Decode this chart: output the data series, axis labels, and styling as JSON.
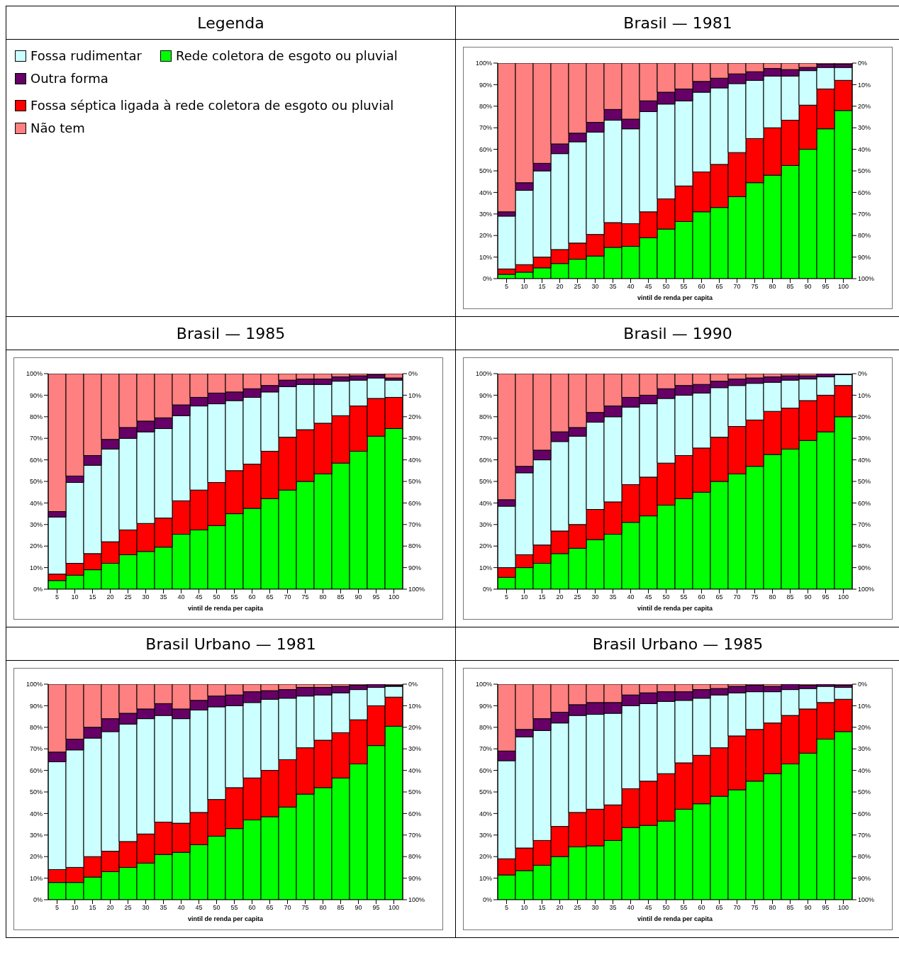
{
  "chart_data": [
    {
      "type": "bar",
      "stacked": true,
      "title": "Brasil — 1981",
      "legend": "left",
      "legend_title": "Legenda",
      "xlabel": "vintil de renda per capita",
      "categories": [
        "5",
        "10",
        "15",
        "20",
        "25",
        "30",
        "35",
        "40",
        "45",
        "50",
        "55",
        "60",
        "65",
        "70",
        "75",
        "80",
        "85",
        "90",
        "95",
        "100"
      ],
      "ylim": [
        0,
        100
      ],
      "yticks": [
        {
          "value": 0,
          "label": "0%"
        },
        {
          "value": 10,
          "label": "10%"
        },
        {
          "value": 20,
          "label": "20%"
        },
        {
          "value": 30,
          "label": "30%"
        },
        {
          "value": 40,
          "label": "40%"
        },
        {
          "value": 50,
          "label": "50%"
        },
        {
          "value": 60,
          "label": "60%"
        },
        {
          "value": 70,
          "label": "70%"
        },
        {
          "value": 80,
          "label": "80%"
        },
        {
          "value": 90,
          "label": "90%"
        },
        {
          "value": 100,
          "label": "100%"
        }
      ],
      "y2lim": [
        100,
        0
      ],
      "y2ticks": [
        {
          "value": 0,
          "label": "0%"
        },
        {
          "value": 10,
          "label": "10%"
        },
        {
          "value": 20,
          "label": "20%"
        },
        {
          "value": 30,
          "label": "30%"
        },
        {
          "value": 40,
          "label": "40%"
        },
        {
          "value": 50,
          "label": "50%"
        },
        {
          "value": 60,
          "label": "60%"
        },
        {
          "value": 70,
          "label": "70%"
        },
        {
          "value": 80,
          "label": "80%"
        },
        {
          "value": 90,
          "label": "90%"
        },
        {
          "value": 100,
          "label": "100%"
        }
      ],
      "series": [
        {
          "name": "Rede coletora de esgoto ou pluvial",
          "color": "#00ff00",
          "values": [
            2,
            3,
            5,
            7,
            9,
            10.5,
            14.5,
            15,
            19,
            23,
            26.5,
            31,
            33,
            38,
            44.5,
            48,
            52.5,
            60,
            69.5,
            78
          ]
        },
        {
          "name": "Fossa séptica ligada à rede coletora de esgoto ou pluvial",
          "color": "#ff0000",
          "values": [
            2.5,
            3.5,
            5,
            6.5,
            7.5,
            10,
            11.5,
            10.5,
            12,
            14,
            16.5,
            18.5,
            20,
            20.5,
            20.5,
            22,
            21,
            20.5,
            18.5,
            14
          ]
        },
        {
          "name": "Fossa rudimentar",
          "color": "#ccffff",
          "values": [
            24.5,
            34.5,
            40,
            44.5,
            47,
            47.5,
            47.5,
            44,
            46.5,
            44,
            39.5,
            37,
            35.5,
            32,
            27,
            24,
            20.5,
            16,
            10,
            6
          ]
        },
        {
          "name": "Outra forma",
          "color": "#660066",
          "values": [
            2,
            3.5,
            3.5,
            4.5,
            4,
            4.5,
            5,
            4.5,
            5,
            5.5,
            5.5,
            5,
            4.5,
            4.5,
            4,
            3.5,
            3,
            1.5,
            1.5,
            1.5
          ]
        },
        {
          "name": "Não tem",
          "color": "#ff8080",
          "values": [
            69,
            55.5,
            46.5,
            37.5,
            32.5,
            27.5,
            21.5,
            26,
            17.5,
            13.5,
            12,
            8.5,
            7,
            5,
            4,
            2.5,
            3,
            2,
            0.5,
            0.5
          ]
        }
      ]
    },
    {
      "type": "bar",
      "stacked": true,
      "title": "Brasil — 1985",
      "xlabel": "vintil de renda per capita",
      "categories": [
        "5",
        "10",
        "15",
        "20",
        "25",
        "30",
        "35",
        "40",
        "45",
        "50",
        "55",
        "60",
        "65",
        "70",
        "75",
        "80",
        "85",
        "90",
        "95",
        "100"
      ],
      "ylim": [
        0,
        100
      ],
      "yticks": [
        {
          "value": 0,
          "label": "0%"
        },
        {
          "value": 10,
          "label": "10%"
        },
        {
          "value": 20,
          "label": "20%"
        },
        {
          "value": 30,
          "label": "30%"
        },
        {
          "value": 40,
          "label": "40%"
        },
        {
          "value": 50,
          "label": "50%"
        },
        {
          "value": 60,
          "label": "60%"
        },
        {
          "value": 70,
          "label": "70%"
        },
        {
          "value": 80,
          "label": "80%"
        },
        {
          "value": 90,
          "label": "90%"
        },
        {
          "value": 100,
          "label": "100%"
        }
      ],
      "y2lim": [
        100,
        0
      ],
      "y2ticks": [
        {
          "value": 0,
          "label": "0%"
        },
        {
          "value": 10,
          "label": "10%"
        },
        {
          "value": 20,
          "label": "20%"
        },
        {
          "value": 30,
          "label": "30%"
        },
        {
          "value": 40,
          "label": "40%"
        },
        {
          "value": 50,
          "label": "50%"
        },
        {
          "value": 60,
          "label": "60%"
        },
        {
          "value": 70,
          "label": "70%"
        },
        {
          "value": 80,
          "label": "80%"
        },
        {
          "value": 90,
          "label": "90%"
        },
        {
          "value": 100,
          "label": "100%"
        }
      ],
      "series": [
        {
          "name": "Rede coletora de esgoto ou pluvial",
          "color": "#00ff00",
          "values": [
            4,
            6.5,
            9,
            12,
            16,
            17.5,
            19.5,
            25.5,
            27.5,
            29.5,
            35,
            37.5,
            42,
            46,
            50,
            53.5,
            58.5,
            64,
            71,
            74.5
          ]
        },
        {
          "name": "Fossa séptica ligada à rede coletora de esgoto ou pluvial",
          "color": "#ff0000",
          "values": [
            3,
            5.5,
            7.5,
            10,
            11.5,
            13,
            13.5,
            15.5,
            18.5,
            20,
            20,
            20.5,
            22,
            24.5,
            24,
            23.5,
            22,
            21,
            17.5,
            14.5
          ]
        },
        {
          "name": "Fossa rudimentar",
          "color": "#ccffff",
          "values": [
            26.5,
            37.5,
            41,
            43,
            42.5,
            42.5,
            41.5,
            39.5,
            39,
            36.5,
            32.5,
            31,
            27.5,
            23.5,
            21,
            18,
            16,
            12,
            9.5,
            8
          ]
        },
        {
          "name": "Outra forma",
          "color": "#660066",
          "values": [
            2.5,
            3,
            4.5,
            4.5,
            5,
            5,
            5,
            5,
            4,
            5,
            4,
            4,
            3,
            3,
            2.5,
            2.5,
            2,
            2,
            1.5,
            1
          ]
        },
        {
          "name": "Não tem",
          "color": "#ff8080",
          "values": [
            64,
            47.5,
            38,
            30.5,
            25,
            22,
            20.5,
            14.5,
            11,
            9,
            8.5,
            7,
            5.5,
            3,
            2.5,
            2.5,
            1.5,
            1,
            0.5,
            2
          ]
        }
      ]
    },
    {
      "type": "bar",
      "stacked": true,
      "title": "Brasil — 1990",
      "xlabel": "vintil de renda per capita",
      "categories": [
        "5",
        "10",
        "15",
        "20",
        "25",
        "30",
        "35",
        "40",
        "45",
        "50",
        "55",
        "60",
        "65",
        "70",
        "75",
        "80",
        "85",
        "90",
        "95",
        "100"
      ],
      "ylim": [
        0,
        100
      ],
      "yticks": [
        {
          "value": 0,
          "label": "0%"
        },
        {
          "value": 10,
          "label": "10%"
        },
        {
          "value": 20,
          "label": "20%"
        },
        {
          "value": 30,
          "label": "30%"
        },
        {
          "value": 40,
          "label": "40%"
        },
        {
          "value": 50,
          "label": "50%"
        },
        {
          "value": 60,
          "label": "60%"
        },
        {
          "value": 70,
          "label": "70%"
        },
        {
          "value": 80,
          "label": "80%"
        },
        {
          "value": 90,
          "label": "90%"
        },
        {
          "value": 100,
          "label": "100%"
        }
      ],
      "y2lim": [
        100,
        0
      ],
      "y2ticks": [
        {
          "value": 0,
          "label": "0%"
        },
        {
          "value": 10,
          "label": "10%"
        },
        {
          "value": 20,
          "label": "20%"
        },
        {
          "value": 30,
          "label": "30%"
        },
        {
          "value": 40,
          "label": "40%"
        },
        {
          "value": 50,
          "label": "50%"
        },
        {
          "value": 60,
          "label": "60%"
        },
        {
          "value": 70,
          "label": "70%"
        },
        {
          "value": 80,
          "label": "80%"
        },
        {
          "value": 90,
          "label": "90%"
        },
        {
          "value": 100,
          "label": "100%"
        }
      ],
      "series": [
        {
          "name": "Rede coletora de esgoto ou pluvial",
          "color": "#00ff00",
          "values": [
            5.5,
            10,
            12,
            16.5,
            19,
            23,
            25.5,
            31,
            34,
            39,
            42,
            45,
            50,
            53.5,
            57,
            62.5,
            65,
            69,
            73,
            80
          ]
        },
        {
          "name": "Fossa séptica ligada à rede coletora de esgoto ou pluvial",
          "color": "#ff0000",
          "values": [
            4.5,
            6,
            8.5,
            10.5,
            11,
            14,
            15,
            17.5,
            18,
            19.5,
            20,
            20.5,
            20.5,
            22,
            21.5,
            20,
            19,
            18.5,
            17,
            14.5
          ]
        },
        {
          "name": "Fossa rudimentar",
          "color": "#ccffff",
          "values": [
            28.5,
            38,
            39.5,
            41.5,
            41,
            40.5,
            39.5,
            36,
            34,
            30,
            28,
            25.5,
            23,
            19,
            17,
            13.5,
            13,
            10,
            8.5,
            5
          ]
        },
        {
          "name": "Outra forma",
          "color": "#660066",
          "values": [
            3,
            3,
            4.5,
            4.5,
            4,
            4.5,
            5,
            4.5,
            4,
            4.5,
            4.5,
            4,
            3,
            3,
            2.5,
            2.5,
            2,
            1.5,
            1.5,
            0.5
          ]
        },
        {
          "name": "Não tem",
          "color": "#ff8080",
          "values": [
            58.5,
            43,
            35.5,
            27,
            25,
            18,
            15,
            11,
            10,
            7,
            5.5,
            5,
            3.5,
            2.5,
            2,
            1.5,
            1,
            1,
            0,
            0
          ]
        }
      ]
    },
    {
      "type": "bar",
      "stacked": true,
      "title": "Brasil Urbano — 1981",
      "xlabel": "vintil de renda per capita",
      "categories": [
        "5",
        "10",
        "15",
        "20",
        "25",
        "30",
        "35",
        "40",
        "45",
        "50",
        "55",
        "60",
        "65",
        "70",
        "75",
        "80",
        "85",
        "90",
        "95",
        "100"
      ],
      "ylim": [
        0,
        100
      ],
      "yticks": [
        {
          "value": 0,
          "label": "0%"
        },
        {
          "value": 10,
          "label": "10%"
        },
        {
          "value": 20,
          "label": "20%"
        },
        {
          "value": 30,
          "label": "30%"
        },
        {
          "value": 40,
          "label": "40%"
        },
        {
          "value": 50,
          "label": "50%"
        },
        {
          "value": 60,
          "label": "60%"
        },
        {
          "value": 70,
          "label": "70%"
        },
        {
          "value": 80,
          "label": "80%"
        },
        {
          "value": 90,
          "label": "90%"
        },
        {
          "value": 100,
          "label": "100%"
        }
      ],
      "y2lim": [
        100,
        0
      ],
      "y2ticks": [
        {
          "value": 0,
          "label": "0%"
        },
        {
          "value": 10,
          "label": "10%"
        },
        {
          "value": 20,
          "label": "20%"
        },
        {
          "value": 30,
          "label": "30%"
        },
        {
          "value": 40,
          "label": "40%"
        },
        {
          "value": 50,
          "label": "50%"
        },
        {
          "value": 60,
          "label": "60%"
        },
        {
          "value": 70,
          "label": "70%"
        },
        {
          "value": 80,
          "label": "80%"
        },
        {
          "value": 90,
          "label": "90%"
        },
        {
          "value": 100,
          "label": "100%"
        }
      ],
      "series": [
        {
          "name": "Rede coletora de esgoto ou pluvial",
          "color": "#00ff00",
          "values": [
            8,
            8,
            10.5,
            13,
            15,
            17,
            21,
            22,
            25.5,
            29.5,
            33,
            37,
            38.5,
            43,
            49,
            52,
            56.5,
            63,
            71.5,
            80.5
          ]
        },
        {
          "name": "Fossa séptica ligada à rede coletora de esgoto ou pluvial",
          "color": "#ff0000",
          "values": [
            6,
            7,
            9.5,
            9.5,
            12,
            13.5,
            15,
            13.5,
            15,
            17,
            19,
            19.5,
            21.5,
            22,
            21.5,
            22,
            21,
            20.5,
            18.5,
            13.5
          ]
        },
        {
          "name": "Fossa rudimentar",
          "color": "#ccffff",
          "values": [
            50,
            54.5,
            55,
            55.5,
            54.5,
            53.5,
            49.5,
            48.5,
            47.5,
            43,
            38,
            35,
            33,
            28.5,
            24,
            21,
            18.5,
            14,
            8.5,
            5
          ]
        },
        {
          "name": "Outra forma",
          "color": "#660066",
          "values": [
            4.5,
            5,
            5,
            6,
            5,
            4.5,
            5.5,
            4.5,
            4.5,
            5,
            5,
            5,
            4,
            4,
            4,
            3.5,
            3,
            2,
            1.5,
            0.5
          ]
        },
        {
          "name": "Não tem",
          "color": "#ff8080",
          "values": [
            31.5,
            25.5,
            20,
            16,
            13.5,
            11.5,
            9,
            11.5,
            7.5,
            5.5,
            5,
            3.5,
            3,
            2.5,
            1.5,
            1.5,
            1,
            0.5,
            0,
            0.5
          ]
        }
      ]
    },
    {
      "type": "bar",
      "stacked": true,
      "title": "Brasil Urbano — 1985",
      "xlabel": "vintil de renda per capita",
      "categories": [
        "5",
        "10",
        "15",
        "20",
        "25",
        "30",
        "35",
        "40",
        "45",
        "50",
        "55",
        "60",
        "65",
        "70",
        "75",
        "80",
        "85",
        "90",
        "95",
        "100"
      ],
      "ylim": [
        0,
        100
      ],
      "yticks": [
        {
          "value": 0,
          "label": "0%"
        },
        {
          "value": 10,
          "label": "10%"
        },
        {
          "value": 20,
          "label": "20%"
        },
        {
          "value": 30,
          "label": "30%"
        },
        {
          "value": 40,
          "label": "40%"
        },
        {
          "value": 50,
          "label": "50%"
        },
        {
          "value": 60,
          "label": "60%"
        },
        {
          "value": 70,
          "label": "70%"
        },
        {
          "value": 80,
          "label": "80%"
        },
        {
          "value": 90,
          "label": "90%"
        },
        {
          "value": 100,
          "label": "100%"
        }
      ],
      "y2lim": [
        100,
        0
      ],
      "y2ticks": [
        {
          "value": 0,
          "label": "0%"
        },
        {
          "value": 10,
          "label": "10%"
        },
        {
          "value": 20,
          "label": "20%"
        },
        {
          "value": 30,
          "label": "30%"
        },
        {
          "value": 40,
          "label": "40%"
        },
        {
          "value": 50,
          "label": "50%"
        },
        {
          "value": 60,
          "label": "60%"
        },
        {
          "value": 70,
          "label": "70%"
        },
        {
          "value": 80,
          "label": "80%"
        },
        {
          "value": 90,
          "label": "90%"
        },
        {
          "value": 100,
          "label": "100%"
        }
      ],
      "series": [
        {
          "name": "Rede coletora de esgoto ou pluvial",
          "color": "#00ff00",
          "values": [
            11.5,
            13.5,
            16,
            20,
            24.5,
            25,
            27.5,
            33.5,
            34.5,
            36.5,
            42,
            44.5,
            48,
            51,
            55,
            58.5,
            63,
            68,
            74.5,
            78
          ]
        },
        {
          "name": "Fossa séptica ligada à rede coletora de esgoto ou pluvial",
          "color": "#ff0000",
          "values": [
            7.5,
            10.5,
            11.5,
            14,
            16,
            17,
            16.5,
            18,
            20.5,
            22,
            21.5,
            22.5,
            22.5,
            25,
            24,
            23.5,
            22.5,
            20.5,
            17,
            15
          ]
        },
        {
          "name": "Fossa rudimentar",
          "color": "#ccffff",
          "values": [
            45.5,
            51.5,
            51,
            48,
            45,
            44,
            42.5,
            38.5,
            36,
            33.5,
            29,
            26.5,
            24.5,
            20,
            17.5,
            14.5,
            12,
            9.5,
            7.5,
            5.5
          ]
        },
        {
          "name": "Outra forma",
          "color": "#660066",
          "values": [
            4.5,
            3.5,
            5.5,
            5,
            5,
            5.5,
            5,
            5,
            5,
            4.5,
            4,
            4,
            3,
            3,
            3,
            2.5,
            2.5,
            1.5,
            1,
            1
          ]
        },
        {
          "name": "Não tem",
          "color": "#ff8080",
          "values": [
            31,
            21,
            16,
            13,
            9.5,
            8.5,
            8.5,
            5,
            4,
            3.5,
            3.5,
            2.5,
            2,
            1,
            0.5,
            1,
            0,
            0.5,
            0,
            0.5
          ]
        }
      ]
    }
  ]
}
